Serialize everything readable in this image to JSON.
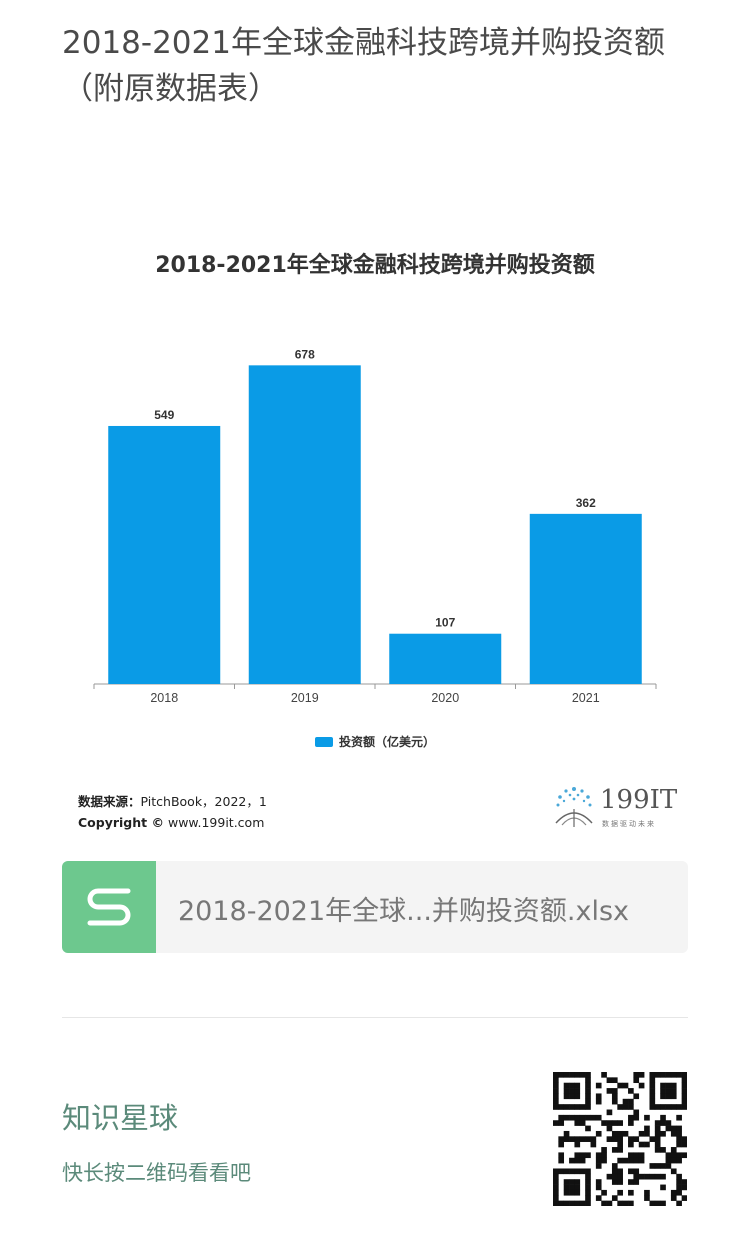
{
  "page": {
    "title": "2018-2021年全球金融科技跨境并购投资额（附原数据表）"
  },
  "chart": {
    "source_label": "数据来源：",
    "source_value": "PitchBook，2022，1",
    "copyright_label": "Copyright ©",
    "copyright_value": "www.199it.com",
    "brand_name": "199IT",
    "brand_tagline": "数据驱动未来",
    "bar_color": "#0a9be6"
  },
  "chart_data": {
    "type": "bar",
    "title": "2018-2021年全球金融科技跨境并购投资额",
    "categories": [
      "2018",
      "2019",
      "2020",
      "2021"
    ],
    "series": [
      {
        "name": "投资额（亿美元）",
        "values": [
          549,
          678,
          107,
          362
        ]
      }
    ],
    "ylim": [
      0,
      700
    ],
    "grid": false,
    "legend_position": "bottom"
  },
  "attachment": {
    "icon": "spreadsheet-s-icon",
    "filename": "2018-2021年全球...并购投资额.xlsx"
  },
  "footer": {
    "title": "知识星球",
    "hint": "快长按二维码看看吧",
    "qr_icon": "qr-code-icon"
  }
}
